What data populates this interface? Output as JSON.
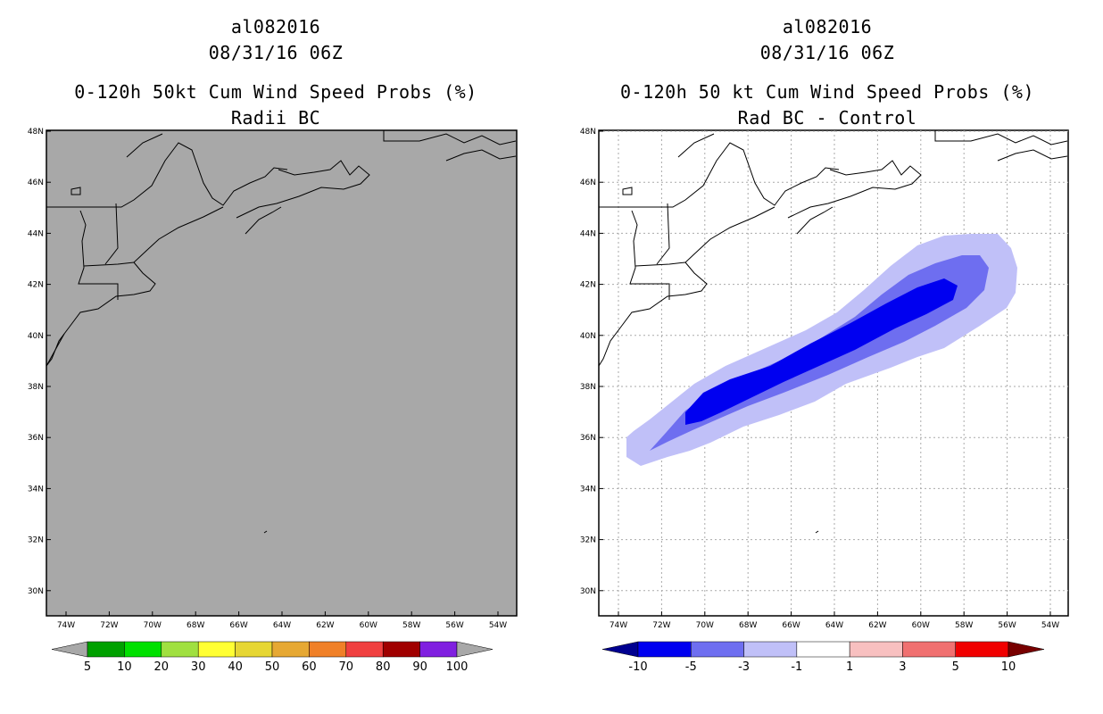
{
  "panels": [
    {
      "id": "left",
      "storm_id": "al082016",
      "datetime": "08/31/16 06Z",
      "title": "0-120h 50kt Cum Wind Speed Probs (%)",
      "subtitle": "Radii BC",
      "colors": {
        "ocean_fill": "#a8a8a8"
      },
      "colorbar": {
        "colors": [
          "#a8a8a8",
          "#00a000",
          "#00e000",
          "#a0e040",
          "#ffff33",
          "#e6d633",
          "#e6a833",
          "#f08028",
          "#f04040",
          "#a00000",
          "#8020e0",
          "#a8a8a8"
        ],
        "labels": [
          "5",
          "10",
          "20",
          "30",
          "40",
          "50",
          "60",
          "70",
          "80",
          "90",
          "100"
        ]
      }
    },
    {
      "id": "right",
      "storm_id": "al082016",
      "datetime": "08/31/16 06Z",
      "title": "0-120h 50 kt Cum Wind Speed Probs (%)",
      "subtitle": "Rad BC - Control",
      "colors": {
        "ocean_fill": "#ffffff"
      },
      "colorbar": {
        "colors": [
          "#000090",
          "#0000f0",
          "#6e6ef0",
          "#c0c0f8",
          "#ffffff",
          "#f8c0c0",
          "#f07070",
          "#f00000",
          "#780000"
        ],
        "labels": [
          "-10",
          "-5",
          "-3",
          "-1",
          "1",
          "3",
          "5",
          "10"
        ]
      }
    }
  ],
  "map": {
    "lat_labels": [
      "48N",
      "46N",
      "44N",
      "42N",
      "40N",
      "38N",
      "36N",
      "34N",
      "32N",
      "30N"
    ],
    "lon_labels": [
      "74W",
      "72W",
      "70W",
      "68W",
      "66W",
      "64W",
      "62W",
      "60W",
      "58W",
      "56W",
      "54W"
    ]
  },
  "contours": {
    "colors": {
      "l1": "#c0c0f8",
      "l2": "#6e6ef0",
      "l3": "#0000f0"
    }
  }
}
